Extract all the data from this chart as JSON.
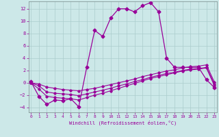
{
  "bg_color": "#cce8e8",
  "grid_color": "#aacccc",
  "line_color": "#990099",
  "xlim": [
    -0.3,
    23.3
  ],
  "ylim": [
    -4.8,
    13.2
  ],
  "xticks": [
    0,
    1,
    2,
    3,
    4,
    5,
    6,
    7,
    8,
    9,
    10,
    11,
    12,
    13,
    14,
    15,
    16,
    17,
    18,
    19,
    20,
    21,
    22,
    23
  ],
  "yticks": [
    -4,
    -2,
    0,
    2,
    4,
    6,
    8,
    10,
    12
  ],
  "xlabel": "Windchill (Refroidissement éolien,°C)",
  "curve1_x": [
    0,
    1,
    2,
    3,
    4,
    5,
    6,
    7,
    8,
    9,
    10,
    11,
    12,
    13,
    14,
    15,
    16,
    17,
    18,
    19,
    20,
    21,
    22,
    23
  ],
  "curve1_y": [
    0.2,
    -2.2,
    -3.5,
    -2.8,
    -2.9,
    -2.6,
    -3.9,
    2.5,
    8.5,
    7.5,
    10.5,
    12.0,
    12.0,
    11.5,
    12.5,
    13.0,
    11.5,
    4.0,
    2.5,
    2.5,
    2.5,
    2.5,
    0.5,
    -0.8
  ],
  "curve2_x": [
    0,
    1,
    2,
    3,
    4,
    5,
    6,
    7,
    8,
    9,
    10,
    11,
    12,
    13,
    14,
    15,
    16,
    17,
    18,
    19,
    20,
    21,
    22,
    23
  ],
  "curve2_y": [
    0.0,
    -1.0,
    -2.2,
    -2.4,
    -2.5,
    -2.6,
    -2.8,
    -2.4,
    -2.0,
    -1.7,
    -1.3,
    -0.9,
    -0.5,
    -0.1,
    0.3,
    0.7,
    1.0,
    1.3,
    1.6,
    1.9,
    2.1,
    2.2,
    2.4,
    -0.5
  ],
  "curve3_x": [
    0,
    1,
    2,
    3,
    4,
    5,
    6,
    7,
    8,
    9,
    10,
    11,
    12,
    13,
    14,
    15,
    16,
    17,
    18,
    19,
    20,
    21,
    22,
    23
  ],
  "curve3_y": [
    0.0,
    -0.5,
    -1.5,
    -1.7,
    -1.8,
    -1.9,
    -2.1,
    -1.8,
    -1.5,
    -1.2,
    -0.9,
    -0.5,
    -0.2,
    0.2,
    0.5,
    0.9,
    1.2,
    1.5,
    1.7,
    2.0,
    2.2,
    2.3,
    2.5,
    -0.2
  ],
  "curve4_x": [
    0,
    1,
    2,
    3,
    4,
    5,
    6,
    7,
    8,
    9,
    10,
    11,
    12,
    13,
    14,
    15,
    16,
    17,
    18,
    19,
    20,
    21,
    22,
    23
  ],
  "curve4_y": [
    0.0,
    -0.2,
    -0.7,
    -0.9,
    -1.1,
    -1.2,
    -1.3,
    -1.1,
    -0.9,
    -0.6,
    -0.3,
    0.0,
    0.3,
    0.6,
    1.0,
    1.3,
    1.6,
    1.9,
    2.1,
    2.4,
    2.6,
    2.7,
    2.9,
    0.1
  ]
}
